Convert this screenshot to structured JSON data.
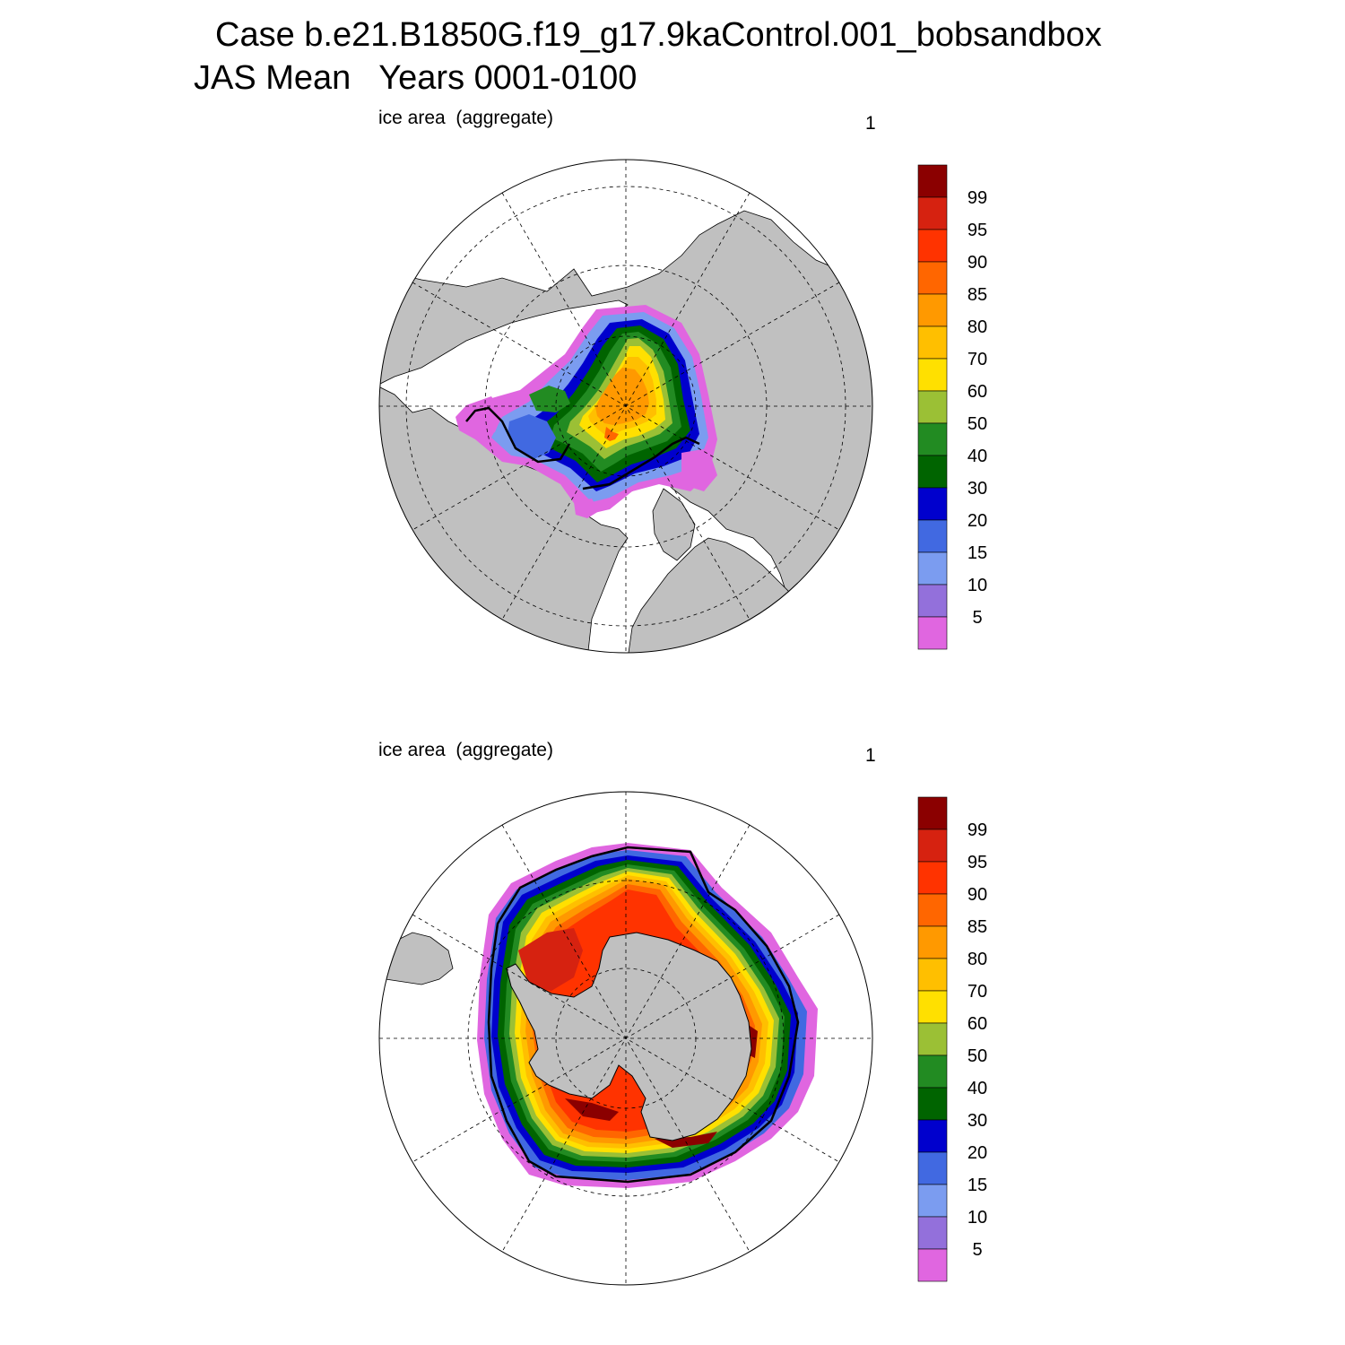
{
  "figure": {
    "title_line1": "Case b.e21.B1850G.f19_g17.9kaControl.001_bobsandbox",
    "title_line2": "JAS Mean   Years 0001-0100"
  },
  "panels": [
    {
      "label": "ice area  (aggregate)",
      "number": "1",
      "hemisphere": "north"
    },
    {
      "label": "ice area  (aggregate)",
      "number": "1",
      "hemisphere": "south"
    }
  ],
  "colorbar": {
    "labels": [
      "99",
      "95",
      "90",
      "85",
      "80",
      "70",
      "60",
      "50",
      "40",
      "30",
      "20",
      "15",
      "10",
      "5"
    ],
    "colors": [
      "#8b0000",
      "#d62210",
      "#ff3300",
      "#ff6600",
      "#ff9900",
      "#ffbf00",
      "#ffe000",
      "#9bc035",
      "#228b22",
      "#006400",
      "#0000cd",
      "#4169e1",
      "#7b9cf0",
      "#9370db",
      "#e066e0"
    ]
  },
  "colors": {
    "land": "#c0c0c0",
    "coast": "#000000"
  }
}
